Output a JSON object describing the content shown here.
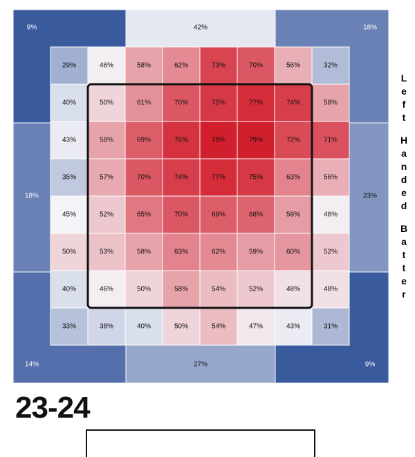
{
  "side_label_words": [
    "Left",
    "Handed",
    "Batter"
  ],
  "season_label": "23-24",
  "chart_data": {
    "type": "heatmap",
    "unit": "%",
    "colors": {
      "low": "#3a5a9e",
      "mid": "#f4f4f8",
      "high": "#d21f2d",
      "zone_border": "#111111"
    },
    "outer_regions": [
      {
        "id": "top-left",
        "value": 9
      },
      {
        "id": "top",
        "value": 42
      },
      {
        "id": "top-right",
        "value": 18
      },
      {
        "id": "left",
        "value": 18
      },
      {
        "id": "right",
        "value": 23
      },
      {
        "id": "bottom-left",
        "value": 14
      },
      {
        "id": "bottom",
        "value": 27
      },
      {
        "id": "bottom-right",
        "value": 9
      }
    ],
    "grid": [
      [
        29,
        46,
        58,
        62,
        73,
        70,
        56,
        32
      ],
      [
        40,
        50,
        61,
        70,
        75,
        77,
        74,
        58
      ],
      [
        43,
        58,
        69,
        76,
        79,
        79,
        72,
        71
      ],
      [
        35,
        57,
        70,
        74,
        77,
        75,
        63,
        56
      ],
      [
        45,
        52,
        65,
        70,
        69,
        68,
        59,
        46
      ],
      [
        50,
        53,
        58,
        63,
        62,
        59,
        60,
        52
      ],
      [
        40,
        46,
        50,
        58,
        54,
        52,
        48,
        48
      ],
      [
        33,
        38,
        40,
        50,
        54,
        47,
        43,
        31
      ]
    ],
    "strike_zone": {
      "rows": [
        1,
        6
      ],
      "cols": [
        1,
        6
      ]
    }
  }
}
